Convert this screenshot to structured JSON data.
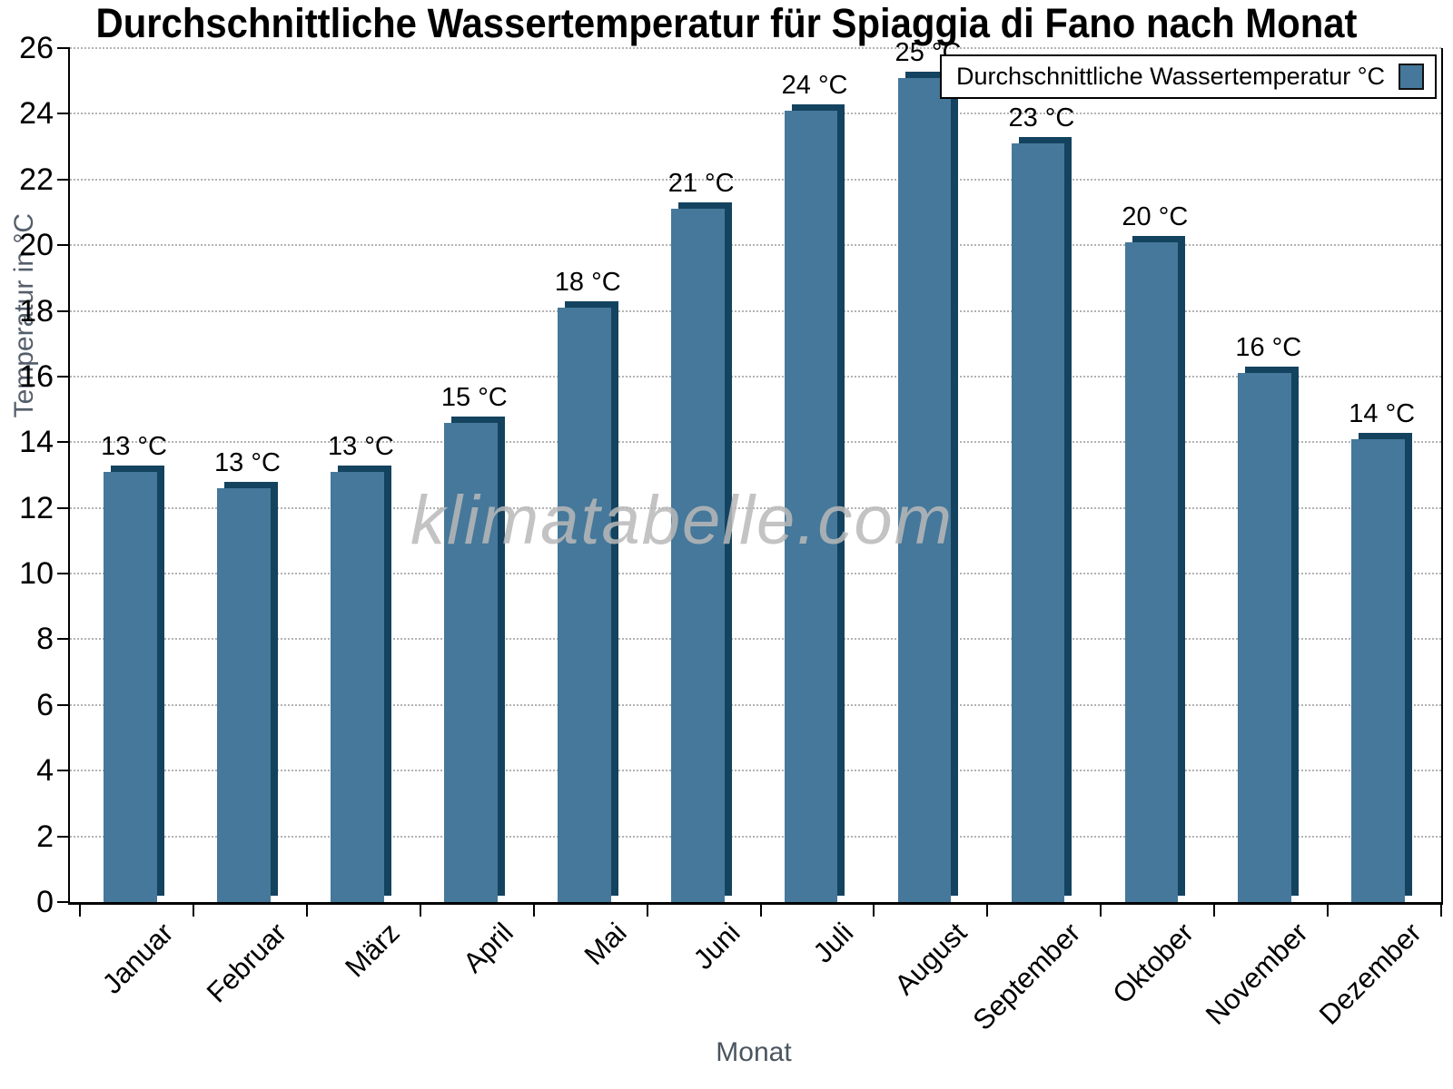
{
  "chart_data": {
    "type": "bar",
    "title": "Durchschnittliche Wassertemperatur für Spiaggia di Fano nach Monat",
    "categories": [
      "Januar",
      "Februar",
      "März",
      "April",
      "Mai",
      "Juni",
      "Juli",
      "August",
      "September",
      "Oktober",
      "November",
      "Dezember"
    ],
    "values": [
      13.1,
      12.6,
      13.1,
      14.6,
      18.1,
      21.1,
      24.1,
      25.1,
      23.1,
      20.1,
      16.1,
      14.1
    ],
    "bar_labels": [
      "13 °C",
      "13 °C",
      "13 °C",
      "15 °C",
      "18 °C",
      "21 °C",
      "24 °C",
      "25 °C",
      "23 °C",
      "20 °C",
      "16 °C",
      "14 °C"
    ],
    "xlabel": "Monat",
    "ylabel": "Temperatur in °C",
    "ylim": [
      0,
      26
    ],
    "ytick_step": 2,
    "grid": "horizontal dotted",
    "legend_entries": [
      "Durchschnittliche Wassertemperatur °C"
    ],
    "legend_position": "top-right",
    "watermark": "klimatabelle.com",
    "colors": {
      "bar": "#45789A",
      "bar_shadow": "#14435F",
      "axis": "#000000",
      "grid": "#b3b3b3",
      "axis_title_gray": "#4a5560",
      "watermark_gray": "#b9b9b9",
      "text": "#000000",
      "background": "#ffffff"
    }
  }
}
